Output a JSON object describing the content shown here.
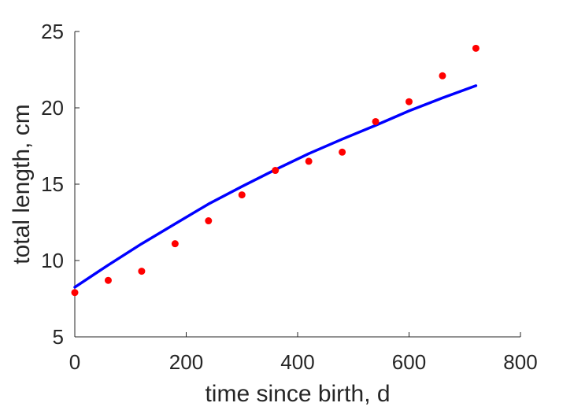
{
  "chart_data": {
    "type": "scatter",
    "xlabel": "time since birth, d",
    "ylabel": "total length, cm",
    "xlim": [
      0,
      800
    ],
    "ylim": [
      5,
      25
    ],
    "xticks": [
      0,
      200,
      400,
      600,
      800
    ],
    "yticks": [
      5,
      10,
      15,
      20,
      25
    ],
    "xtick_labels": [
      "0",
      "200",
      "400",
      "600",
      "800"
    ],
    "ytick_labels": [
      "5",
      "10",
      "15",
      "20",
      "25"
    ],
    "grid": false,
    "series": [
      {
        "kind": "scatter",
        "color": "#ff0000",
        "x": [
          0,
          60,
          120,
          180,
          240,
          300,
          360,
          420,
          480,
          540,
          600,
          660,
          720
        ],
        "y": [
          7.9,
          8.7,
          9.3,
          11.1,
          12.6,
          14.3,
          15.9,
          16.5,
          17.1,
          19.1,
          20.4,
          22.1,
          23.9
        ]
      },
      {
        "kind": "line",
        "color": "#0000ff",
        "x": [
          0,
          60,
          120,
          180,
          240,
          300,
          360,
          420,
          480,
          540,
          600,
          660,
          720
        ],
        "y": [
          8.25,
          9.7,
          11.1,
          12.4,
          13.7,
          14.85,
          15.95,
          17.0,
          17.95,
          18.85,
          19.8,
          20.65,
          21.45
        ]
      }
    ]
  }
}
